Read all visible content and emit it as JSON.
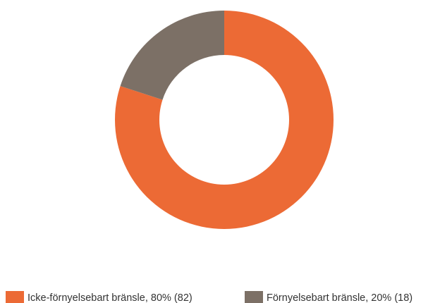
{
  "chart_data": {
    "type": "donut",
    "categories": [
      "Icke-förnyelsebart bränsle, 80% (82)",
      "Förnyelsebart bränsle, 20% (18)"
    ],
    "values": [
      80,
      20
    ],
    "colors": [
      "#ec6a35",
      "#7c7066"
    ]
  }
}
